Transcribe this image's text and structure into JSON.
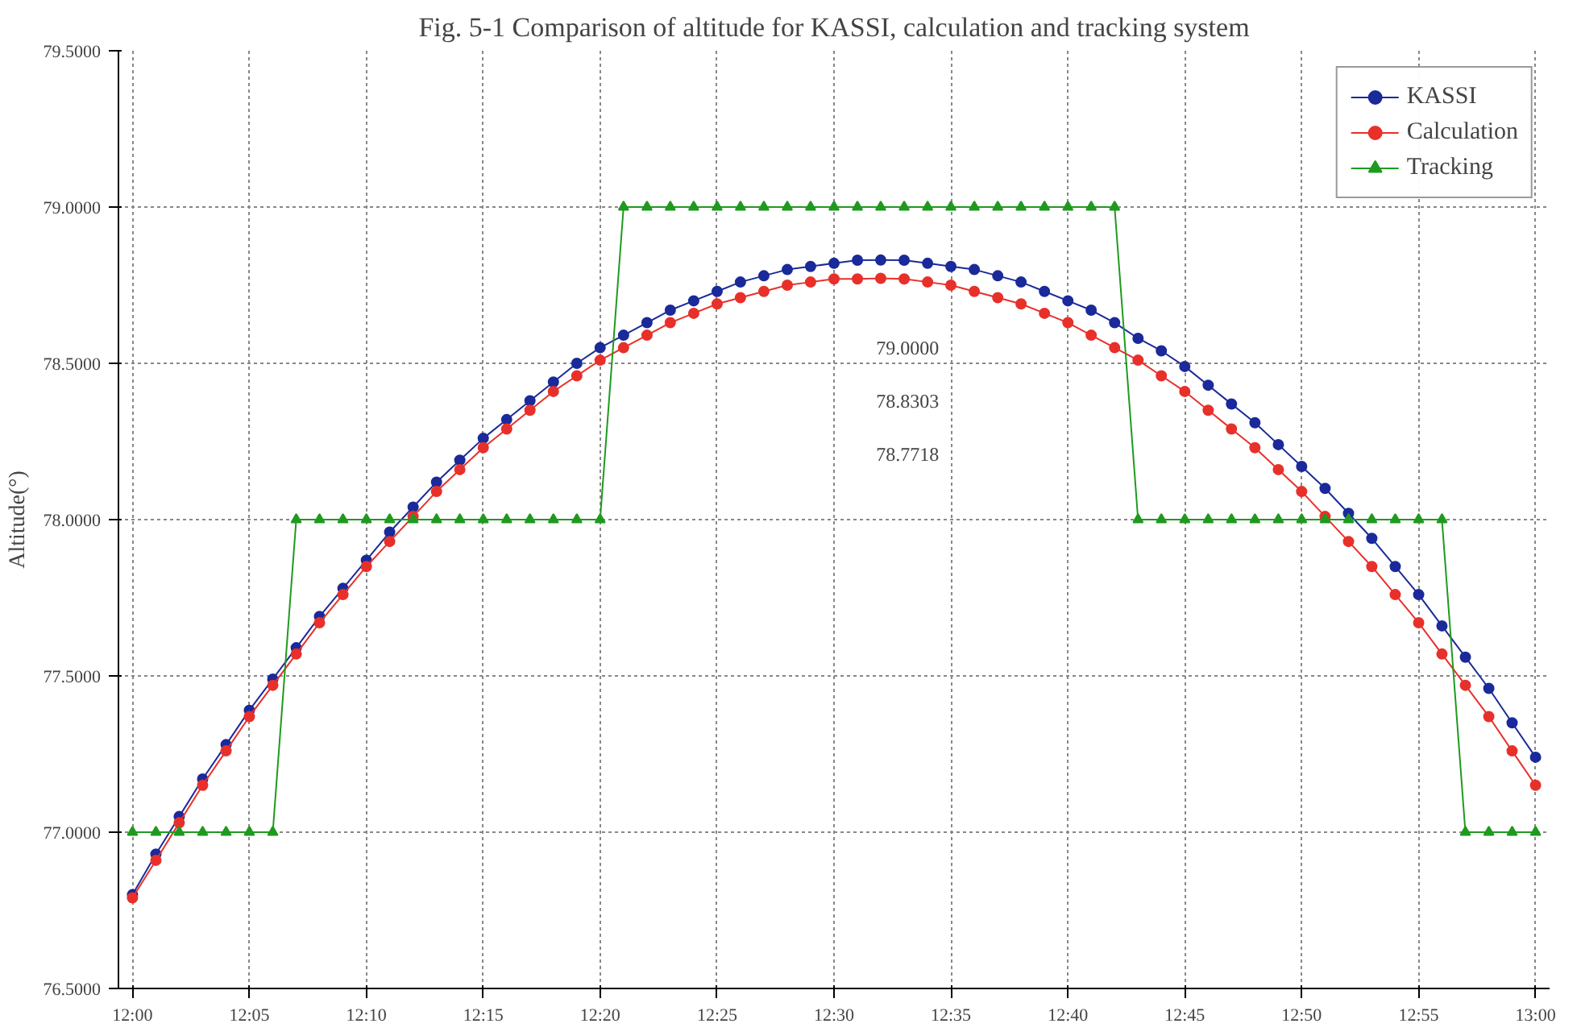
{
  "chart_data": {
    "type": "line",
    "title": "Fig. 5-1 Comparison of altitude for KASSI, calculation and tracking system",
    "ylabel": "Altitude(°)",
    "x": [
      12.0,
      12.0167,
      12.0333,
      12.05,
      12.0667,
      12.0833,
      12.1,
      12.1167,
      12.1333,
      12.15,
      12.1667,
      12.1833,
      12.2,
      12.2167,
      12.2333,
      12.25,
      12.2667,
      12.2833,
      12.3,
      12.3167,
      12.3333,
      12.35,
      12.3667,
      12.3833,
      12.4,
      12.4167,
      12.4333,
      12.45,
      12.4667,
      12.4833,
      12.5,
      12.5167,
      12.5333,
      12.55,
      12.5667,
      12.5833,
      12.6,
      12.6167,
      12.6333,
      12.65,
      12.6667,
      12.6833,
      12.7,
      12.7167,
      12.7333,
      12.75,
      12.7667,
      12.7833,
      12.8,
      12.8167,
      12.8333,
      12.85,
      12.8667,
      12.8833,
      12.9,
      12.9167,
      12.9333,
      12.95,
      12.9667,
      12.9833,
      13.0
    ],
    "series": [
      {
        "name": "KASSI",
        "color": "#1a2a9a",
        "marker": "circle",
        "values": [
          76.8,
          76.93,
          77.05,
          77.17,
          77.28,
          77.39,
          77.49,
          77.59,
          77.69,
          77.78,
          77.87,
          77.96,
          78.04,
          78.12,
          78.19,
          78.26,
          78.32,
          78.38,
          78.44,
          78.5,
          78.55,
          78.59,
          78.63,
          78.67,
          78.7,
          78.73,
          78.76,
          78.78,
          78.8,
          78.81,
          78.82,
          78.83,
          78.8303,
          78.83,
          78.82,
          78.81,
          78.8,
          78.78,
          78.76,
          78.73,
          78.7,
          78.67,
          78.63,
          78.58,
          78.54,
          78.49,
          78.43,
          78.37,
          78.31,
          78.24,
          78.17,
          78.1,
          78.02,
          77.94,
          77.85,
          77.76,
          77.66,
          77.56,
          77.46,
          77.35,
          77.24
        ]
      },
      {
        "name": "Calculation",
        "color": "#e8302a",
        "marker": "circle",
        "values": [
          76.79,
          76.91,
          77.03,
          77.15,
          77.26,
          77.37,
          77.47,
          77.57,
          77.67,
          77.76,
          77.85,
          77.93,
          78.01,
          78.09,
          78.16,
          78.23,
          78.29,
          78.35,
          78.41,
          78.46,
          78.51,
          78.55,
          78.59,
          78.63,
          78.66,
          78.69,
          78.71,
          78.73,
          78.75,
          78.76,
          78.77,
          78.77,
          78.7718,
          78.77,
          78.76,
          78.75,
          78.73,
          78.71,
          78.69,
          78.66,
          78.63,
          78.59,
          78.55,
          78.51,
          78.46,
          78.41,
          78.35,
          78.29,
          78.23,
          78.16,
          78.09,
          78.01,
          77.93,
          77.85,
          77.76,
          77.67,
          77.57,
          77.47,
          77.37,
          77.26,
          77.15
        ]
      },
      {
        "name": "Tracking",
        "color": "#1f9a1f",
        "marker": "triangle",
        "values": [
          77,
          77,
          77,
          77,
          77,
          77,
          77,
          78,
          78,
          78,
          78,
          78,
          78,
          78,
          78,
          78,
          78,
          78,
          78,
          78,
          78,
          79,
          79,
          79,
          79,
          79,
          79,
          79,
          79,
          79,
          79,
          79,
          79,
          79,
          79,
          79,
          79,
          79,
          79,
          79,
          79,
          79,
          79,
          78,
          78,
          78,
          78,
          78,
          78,
          78,
          78,
          78,
          78,
          78,
          78,
          78,
          78,
          77,
          77,
          77,
          77
        ]
      }
    ],
    "annotations": [
      "79.0000",
      "78.8303",
      "78.7718"
    ],
    "xlim": [
      11.99,
      13.01
    ],
    "xticks": [
      {
        "value": 12.0,
        "label": "12:00"
      },
      {
        "value": 12.0833,
        "label": "12:05"
      },
      {
        "value": 12.1667,
        "label": "12:10"
      },
      {
        "value": 12.25,
        "label": "12:15"
      },
      {
        "value": 12.3333,
        "label": "12:20"
      },
      {
        "value": 12.4167,
        "label": "12:25"
      },
      {
        "value": 12.5,
        "label": "12:30"
      },
      {
        "value": 12.5833,
        "label": "12:35"
      },
      {
        "value": 12.6667,
        "label": "12:40"
      },
      {
        "value": 12.75,
        "label": "12:45"
      },
      {
        "value": 12.8333,
        "label": "12:50"
      },
      {
        "value": 12.9167,
        "label": "12:55"
      },
      {
        "value": 13.0,
        "label": "13:00"
      }
    ],
    "ylim": [
      76.5,
      79.5
    ],
    "yticks": [
      {
        "value": 76.5,
        "label": "76.5000"
      },
      {
        "value": 77.0,
        "label": "77.0000"
      },
      {
        "value": 77.5,
        "label": "77.5000"
      },
      {
        "value": 78.0,
        "label": "78.0000"
      },
      {
        "value": 78.5,
        "label": "78.5000"
      },
      {
        "value": 79.0,
        "label": "79.0000"
      },
      {
        "value": 79.5,
        "label": "79.5000"
      }
    ],
    "grid": true,
    "legend": "top right",
    "line_style": "solid"
  }
}
